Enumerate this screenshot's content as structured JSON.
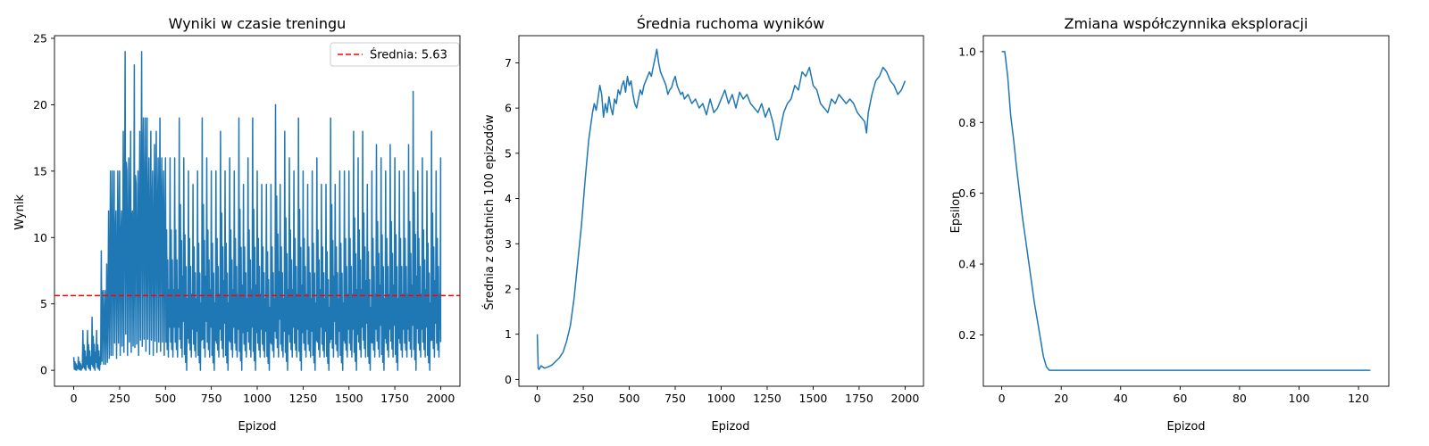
{
  "chart_data": [
    {
      "type": "line",
      "title": "Wyniki w czasie treningu",
      "xlabel": "Epizod",
      "ylabel": "Wynik",
      "xlim": [
        -105,
        2105
      ],
      "ylim": [
        -1.2,
        25.2
      ],
      "xticks": [
        0,
        250,
        500,
        750,
        1000,
        1250,
        1500,
        1750,
        2000
      ],
      "yticks": [
        0,
        5,
        10,
        15,
        20,
        25
      ],
      "grid": false,
      "legend_position": "top-right",
      "series": [
        {
          "color": "#1f77b4",
          "note_points_sampled": "envelope of noisy per-episode scores (min/max per window)",
          "x": [
            0,
            25,
            50,
            75,
            100,
            125,
            150,
            160,
            170,
            180,
            190,
            200,
            210,
            220,
            230,
            240,
            250,
            260,
            270,
            280,
            290,
            300,
            310,
            320,
            330,
            340,
            350,
            360,
            370,
            380,
            390,
            400,
            410,
            420,
            430,
            440,
            450,
            460,
            470,
            480,
            490,
            500,
            525,
            550,
            575,
            600,
            625,
            650,
            675,
            700,
            725,
            750,
            775,
            800,
            825,
            850,
            875,
            900,
            925,
            950,
            975,
            1000,
            1025,
            1050,
            1075,
            1100,
            1125,
            1150,
            1175,
            1200,
            1225,
            1250,
            1275,
            1300,
            1325,
            1350,
            1375,
            1400,
            1425,
            1450,
            1475,
            1500,
            1525,
            1550,
            1575,
            1600,
            1625,
            1650,
            1675,
            1700,
            1725,
            1750,
            1775,
            1800,
            1825,
            1850,
            1875,
            1900,
            1925,
            1950,
            1975,
            2000
          ],
          "max": [
            1,
            1,
            3,
            3,
            4,
            3,
            9,
            6,
            6,
            8,
            12,
            15,
            15,
            15,
            12,
            15,
            15,
            12,
            18,
            24,
            15,
            16,
            18,
            12,
            23,
            14,
            15,
            18,
            24,
            19,
            19,
            19,
            16,
            18,
            15,
            17,
            18,
            16,
            19,
            16,
            15,
            16,
            16,
            16,
            19,
            16,
            15,
            14,
            15,
            19,
            16,
            15,
            15,
            18,
            15,
            16,
            15,
            19,
            14,
            16,
            19,
            15,
            14,
            14,
            14,
            20,
            14,
            18,
            16,
            15,
            19,
            15,
            14,
            15,
            16,
            14,
            14,
            19,
            14,
            15,
            15,
            15,
            18,
            16,
            18,
            14,
            15,
            17,
            16,
            15,
            17,
            16,
            15,
            15,
            17,
            21,
            15,
            16,
            15,
            18,
            15,
            16
          ],
          "min": [
            0,
            0,
            0,
            0,
            0,
            0,
            0,
            0,
            0,
            0,
            0,
            0,
            0,
            1,
            0,
            1,
            0,
            1,
            0,
            1,
            0,
            1,
            0,
            1,
            0,
            1,
            0,
            1,
            0,
            1,
            0,
            1,
            0,
            1,
            0,
            1,
            0,
            1,
            0,
            1,
            0,
            1,
            1,
            1,
            1,
            0,
            1,
            1,
            0,
            1,
            1,
            0,
            1,
            1,
            0,
            1,
            1,
            0,
            1,
            1,
            0,
            1,
            1,
            0,
            1,
            1,
            1,
            0,
            1,
            1,
            0,
            1,
            1,
            0,
            1,
            1,
            0,
            1,
            1,
            0,
            1,
            1,
            0,
            1,
            1,
            0,
            1,
            1,
            0,
            1,
            1,
            0,
            1,
            1,
            1,
            0,
            1,
            1,
            0,
            1,
            1,
            1
          ]
        }
      ],
      "hline": {
        "y": 5.63,
        "color": "#ff0000",
        "style": "dashed",
        "label": "Średnia: 5.63"
      }
    },
    {
      "type": "line",
      "title": "Średnia ruchoma wyników",
      "xlabel": "Epizod",
      "ylabel": "Średnia z ostatnich 100 epizodów",
      "xlim": [
        -100,
        2100
      ],
      "ylim": [
        -0.15,
        7.6
      ],
      "xticks": [
        0,
        250,
        500,
        750,
        1000,
        1250,
        1500,
        1750,
        2000
      ],
      "yticks": [
        0,
        1,
        2,
        3,
        4,
        5,
        6,
        7
      ],
      "grid": false,
      "series": [
        {
          "color": "#1f77b4",
          "x": [
            0,
            5,
            10,
            20,
            40,
            60,
            80,
            100,
            120,
            140,
            160,
            180,
            200,
            220,
            240,
            260,
            280,
            300,
            310,
            320,
            330,
            340,
            350,
            360,
            370,
            380,
            390,
            400,
            410,
            420,
            430,
            440,
            450,
            460,
            470,
            480,
            490,
            500,
            510,
            520,
            530,
            540,
            550,
            560,
            570,
            580,
            590,
            600,
            610,
            620,
            630,
            640,
            650,
            660,
            670,
            680,
            690,
            700,
            710,
            720,
            730,
            740,
            750,
            760,
            770,
            780,
            790,
            800,
            820,
            840,
            860,
            880,
            900,
            920,
            940,
            960,
            980,
            1000,
            1020,
            1040,
            1060,
            1080,
            1100,
            1120,
            1140,
            1160,
            1180,
            1200,
            1220,
            1240,
            1260,
            1280,
            1300,
            1310,
            1320,
            1340,
            1360,
            1380,
            1400,
            1420,
            1440,
            1460,
            1480,
            1500,
            1520,
            1540,
            1560,
            1580,
            1600,
            1620,
            1640,
            1660,
            1680,
            1700,
            1720,
            1740,
            1760,
            1780,
            1790,
            1800,
            1820,
            1840,
            1860,
            1880,
            1900,
            1920,
            1940,
            1960,
            1980,
            2000
          ],
          "y": [
            1.0,
            0.25,
            0.22,
            0.3,
            0.25,
            0.28,
            0.32,
            0.4,
            0.48,
            0.6,
            0.85,
            1.2,
            1.8,
            2.6,
            3.4,
            4.4,
            5.3,
            5.9,
            6.1,
            5.95,
            6.2,
            6.5,
            6.3,
            5.8,
            6.1,
            5.9,
            6.25,
            6.0,
            5.85,
            6.2,
            6.1,
            6.4,
            6.3,
            6.5,
            6.6,
            6.35,
            6.7,
            6.5,
            6.6,
            6.3,
            6.1,
            6.0,
            6.2,
            6.4,
            6.3,
            6.5,
            6.6,
            6.7,
            6.8,
            6.7,
            6.9,
            7.1,
            7.3,
            7.0,
            6.8,
            6.7,
            6.6,
            6.5,
            6.3,
            6.4,
            6.45,
            6.6,
            6.7,
            6.5,
            6.4,
            6.3,
            6.35,
            6.2,
            6.3,
            6.1,
            6.2,
            6.0,
            6.1,
            5.85,
            6.2,
            5.9,
            6.0,
            6.2,
            6.4,
            6.1,
            6.3,
            6.0,
            6.35,
            6.2,
            6.3,
            6.1,
            6.0,
            5.9,
            6.1,
            5.8,
            6.0,
            5.7,
            5.3,
            5.3,
            5.5,
            5.9,
            6.1,
            6.2,
            6.5,
            6.4,
            6.8,
            6.7,
            6.9,
            6.5,
            6.4,
            6.1,
            6.0,
            5.9,
            6.2,
            6.1,
            6.3,
            6.2,
            6.1,
            6.2,
            6.1,
            5.9,
            5.8,
            5.7,
            5.45,
            5.9,
            6.3,
            6.6,
            6.7,
            6.9,
            6.8,
            6.6,
            6.5,
            6.3,
            6.4,
            6.6
          ]
        }
      ]
    },
    {
      "type": "line",
      "title": "Zmiana współczynnika eksploracji",
      "xlabel": "Epizod",
      "ylabel": "Epsilon",
      "xlim": [
        -6.2,
        130.2
      ],
      "ylim": [
        0.055,
        1.045
      ],
      "xticks": [
        0,
        20,
        40,
        60,
        80,
        100,
        120
      ],
      "yticks": [
        0.2,
        0.4,
        0.6,
        0.8,
        1.0
      ],
      "grid": false,
      "series": [
        {
          "color": "#1f77b4",
          "x": [
            0,
            1,
            2,
            3,
            4,
            5,
            6,
            7,
            8,
            9,
            10,
            11,
            12,
            13,
            14,
            15,
            16,
            17,
            18,
            20,
            40,
            60,
            80,
            100,
            124
          ],
          "y": [
            1.0,
            1.0,
            0.93,
            0.82,
            0.75,
            0.67,
            0.6,
            0.53,
            0.47,
            0.41,
            0.35,
            0.29,
            0.24,
            0.19,
            0.14,
            0.11,
            0.1,
            0.1,
            0.1,
            0.1,
            0.1,
            0.1,
            0.1,
            0.1,
            0.1
          ]
        }
      ]
    }
  ]
}
